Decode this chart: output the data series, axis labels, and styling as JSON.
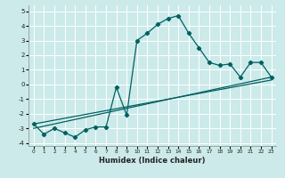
{
  "xlabel": "Humidex (Indice chaleur)",
  "bg_color": "#cceaea",
  "grid_color": "#ffffff",
  "line_color": "#006060",
  "xlim": [
    -0.5,
    23.5
  ],
  "ylim": [
    -4.2,
    5.4
  ],
  "yticks": [
    -4,
    -3,
    -2,
    -1,
    0,
    1,
    2,
    3,
    4,
    5
  ],
  "xticks": [
    0,
    1,
    2,
    3,
    4,
    5,
    6,
    7,
    8,
    9,
    10,
    11,
    12,
    13,
    14,
    15,
    16,
    17,
    18,
    19,
    20,
    21,
    22,
    23
  ],
  "series1_x": [
    0,
    1,
    2,
    3,
    4,
    5,
    6,
    7,
    8,
    9,
    10,
    11,
    12,
    13,
    14,
    15,
    16,
    17,
    18,
    19,
    20,
    21,
    22,
    23
  ],
  "series1_y": [
    -2.7,
    -3.4,
    -3.0,
    -3.3,
    -3.6,
    -3.1,
    -2.9,
    -2.9,
    -0.2,
    -2.1,
    3.0,
    3.5,
    4.1,
    4.5,
    4.7,
    3.5,
    2.5,
    1.5,
    1.3,
    1.4,
    0.5,
    1.5,
    1.5,
    0.5
  ],
  "line1_x": [
    0,
    23
  ],
  "line1_y": [
    -3.0,
    0.5
  ],
  "line2_x": [
    0,
    23
  ],
  "line2_y": [
    -2.7,
    0.3
  ]
}
